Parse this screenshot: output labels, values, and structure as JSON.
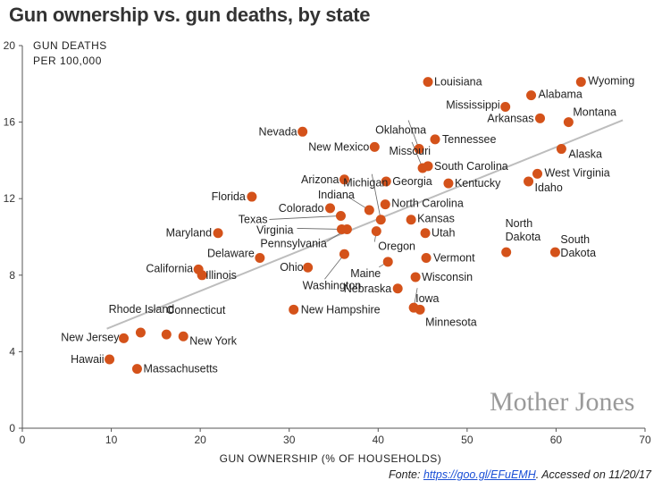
{
  "title": "Gun ownership vs. gun deaths, by state",
  "source": {
    "prefix": "Fonte: ",
    "link_text": "https://goo.gl/EFuEMH",
    "suffix": ". Accessed on 11/20/17"
  },
  "watermark": "Mother Jones",
  "colors": {
    "point": "#d4521a",
    "trend": "#bdbdbd",
    "axis": "#555555",
    "leader": "#666666"
  },
  "chart_data": {
    "type": "scatter",
    "xlabel": "GUN OWNERSHIP (% OF HOUSEHOLDS)",
    "ylabel_lines": [
      "GUN DEATHS",
      "PER 100,000"
    ],
    "xlim": [
      0,
      70
    ],
    "ylim": [
      0,
      20
    ],
    "xticks": [
      0,
      10,
      20,
      30,
      40,
      50,
      60,
      70
    ],
    "yticks": [
      0,
      4,
      8,
      12,
      16,
      20
    ],
    "trendline": {
      "x": [
        9.5,
        67.5
      ],
      "y": [
        5.2,
        16.1
      ]
    },
    "points": [
      {
        "name": "Louisiana",
        "x": 45.6,
        "y": 18.1
      },
      {
        "name": "Wyoming",
        "x": 62.8,
        "y": 18.1
      },
      {
        "name": "Alabama",
        "x": 57.2,
        "y": 17.4
      },
      {
        "name": "Mississippi",
        "x": 54.3,
        "y": 16.8
      },
      {
        "name": "Arkansas",
        "x": 58.2,
        "y": 16.2
      },
      {
        "name": "Montana",
        "x": 61.4,
        "y": 16.0
      },
      {
        "name": "Oklahoma",
        "x": 44.6,
        "y": 14.6
      },
      {
        "name": "Nevada",
        "x": 31.5,
        "y": 15.5
      },
      {
        "name": "Missouri",
        "x": 45.0,
        "y": 13.6
      },
      {
        "name": "Tennessee",
        "x": 46.4,
        "y": 15.1
      },
      {
        "name": "New Mexico",
        "x": 39.6,
        "y": 14.7
      },
      {
        "name": "Alaska",
        "x": 60.6,
        "y": 14.6
      },
      {
        "name": "South Carolina",
        "x": 45.6,
        "y": 13.7
      },
      {
        "name": "West Virginia",
        "x": 57.9,
        "y": 13.3
      },
      {
        "name": "Idaho",
        "x": 56.9,
        "y": 12.9
      },
      {
        "name": "Arizona",
        "x": 36.2,
        "y": 13.0
      },
      {
        "name": "Georgia",
        "x": 40.9,
        "y": 12.9
      },
      {
        "name": "Kentucky",
        "x": 47.9,
        "y": 12.8
      },
      {
        "name": "Florida",
        "x": 25.8,
        "y": 12.1
      },
      {
        "name": "Indiana",
        "x": 39.0,
        "y": 11.4
      },
      {
        "name": "Michigan",
        "x": 40.3,
        "y": 10.9
      },
      {
        "name": "North Carolina",
        "x": 40.8,
        "y": 11.7
      },
      {
        "name": "Colorado",
        "x": 34.6,
        "y": 11.5
      },
      {
        "name": "Texas",
        "x": 35.8,
        "y": 11.1
      },
      {
        "name": "Kansas",
        "x": 43.7,
        "y": 10.9
      },
      {
        "name": "Maryland",
        "x": 22.0,
        "y": 10.2
      },
      {
        "name": "Virginia",
        "x": 35.9,
        "y": 10.4
      },
      {
        "name": "Pennsylvania",
        "x": 36.5,
        "y": 10.4
      },
      {
        "name": "Oregon",
        "x": 39.8,
        "y": 10.3
      },
      {
        "name": "Utah",
        "x": 45.3,
        "y": 10.2
      },
      {
        "name": "North Dakota",
        "x": 54.4,
        "y": 9.2
      },
      {
        "name": "South Dakota",
        "x": 59.9,
        "y": 9.2
      },
      {
        "name": "Delaware",
        "x": 26.7,
        "y": 8.9
      },
      {
        "name": "California",
        "x": 19.8,
        "y": 8.3
      },
      {
        "name": "Illinois",
        "x": 20.2,
        "y": 8.0
      },
      {
        "name": "Ohio",
        "x": 32.1,
        "y": 8.4
      },
      {
        "name": "Washington",
        "x": 36.2,
        "y": 9.1
      },
      {
        "name": "Maine",
        "x": 41.1,
        "y": 8.7
      },
      {
        "name": "Vermont",
        "x": 45.4,
        "y": 8.9
      },
      {
        "name": "Wisconsin",
        "x": 44.2,
        "y": 7.9
      },
      {
        "name": "Nebraska",
        "x": 42.2,
        "y": 7.3
      },
      {
        "name": "Iowa",
        "x": 44.0,
        "y": 6.3
      },
      {
        "name": "Minnesota",
        "x": 44.7,
        "y": 6.2
      },
      {
        "name": "New Hampshire",
        "x": 30.5,
        "y": 6.2
      },
      {
        "name": "Rhode Island",
        "x": 13.3,
        "y": 5.0
      },
      {
        "name": "Connecticut",
        "x": 16.2,
        "y": 4.9
      },
      {
        "name": "New York",
        "x": 18.1,
        "y": 4.8
      },
      {
        "name": "New Jersey",
        "x": 11.4,
        "y": 4.7
      },
      {
        "name": "Hawaii",
        "x": 9.8,
        "y": 3.6
      },
      {
        "name": "Massachusetts",
        "x": 12.9,
        "y": 3.1
      }
    ]
  }
}
